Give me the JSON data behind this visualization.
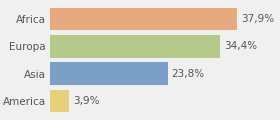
{
  "categories": [
    "Africa",
    "Europa",
    "Asia",
    "America"
  ],
  "values": [
    37.9,
    34.4,
    23.8,
    3.9
  ],
  "labels": [
    "37,9%",
    "34,4%",
    "23,8%",
    "3,9%"
  ],
  "bar_colors": [
    "#e8a97e",
    "#b5c98a",
    "#7b9fc7",
    "#e8d07a"
  ],
  "background_color": "#f0f0f0",
  "xlim": [
    0,
    46
  ],
  "bar_height": 0.82,
  "label_fontsize": 7.5,
  "tick_fontsize": 7.5
}
